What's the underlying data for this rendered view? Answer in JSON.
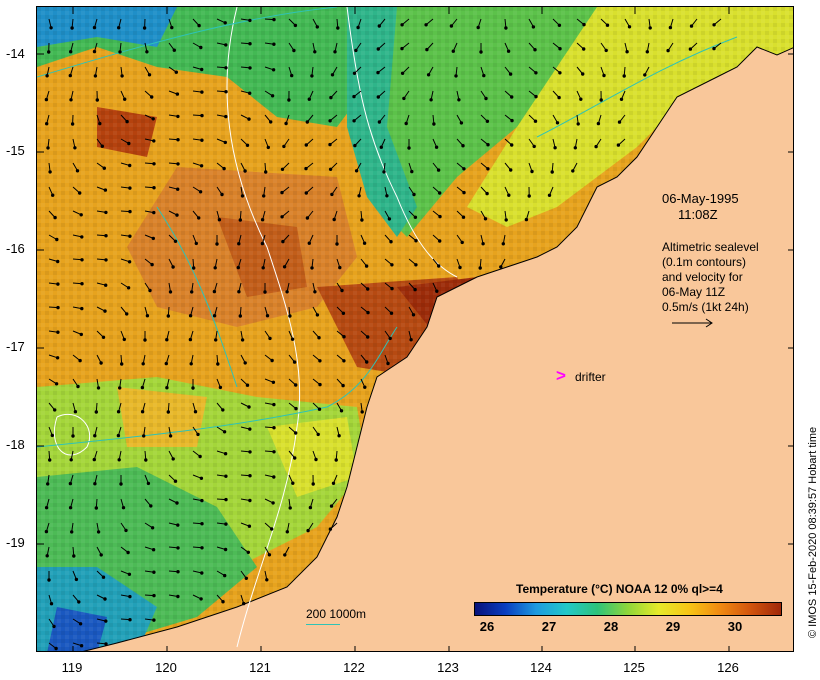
{
  "map": {
    "date": "06-May-1995",
    "time": "11:08Z",
    "altimetry_lines": [
      "Altimetric sealevel",
      "(0.1m contours)",
      "and velocity for",
      "06-May 11Z",
      "0.5m/s (1kt 24h)"
    ],
    "drifter_label": "drifter",
    "drifter_marker": ">",
    "drifter_color": "#ff00ff",
    "land_color": "#f9c79a",
    "colorbar": {
      "title": "Temperature (°C) NOAA 12 0% ql>=4",
      "ticks": [
        "26",
        "27",
        "28",
        "29",
        "30"
      ]
    },
    "depth_scale_label": "200  1000m",
    "credit": "© IMOS 15-Feb-2020 08:39:57 Hobart time",
    "latitude_labels": [
      "-14",
      "-15",
      "-16",
      "-17",
      "-18",
      "-19"
    ],
    "longitude_labels": [
      "119",
      "120",
      "121",
      "122",
      "123",
      "124",
      "125",
      "126"
    ]
  }
}
